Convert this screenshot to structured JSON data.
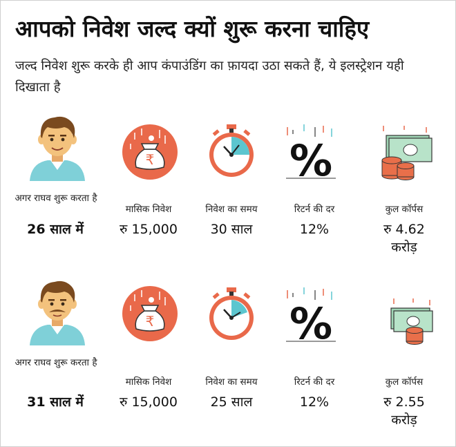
{
  "title": "आपको निवेश जल्द क्यों शुरू करना चाहिए",
  "subtitle": "जल्द निवेश शुरू करके ही आप कंपाउंडिंग का फ़ायदा उठा सकते हैं, ये इलस्ट्रेशन यही दिखाता है",
  "scenarios": [
    {
      "age_label": "अगर राघव शुरू करता है",
      "age_value": "26 साल में",
      "monthly_label": "मासिक निवेश",
      "monthly_value": "रु 15,000",
      "period_label": "निवेश का समय",
      "period_value": "30 साल",
      "rate_label": "रिटर्न की दर",
      "rate_value": "12%",
      "corpus_label": "कुल कॉर्पस",
      "corpus_value_line1": "रु 4.62",
      "corpus_value_line2": "करोड़"
    },
    {
      "age_label": "अगर राघव शुरू करता है",
      "age_value": "31 साल में",
      "monthly_label": "मासिक निवेश",
      "monthly_value": "रु 15,000",
      "period_label": "निवेश का समय",
      "period_value": "25 साल",
      "rate_label": "रिटर्न की दर",
      "rate_value": "12%",
      "corpus_label": "कुल कॉर्पस",
      "corpus_value_line1": "रु 2.55",
      "corpus_value_line2": "करोड़"
    }
  ],
  "icons": {
    "person": "young-man-icon",
    "person_older": "man-with-mustache-icon",
    "money_bag": "rupee-money-bag-icon",
    "stopwatch": "stopwatch-icon",
    "percent": "percent-icon",
    "corpus": "cash-and-coins-icon"
  },
  "colors": {
    "accent_orange": "#e9694a",
    "teal": "#5cc6cf",
    "skin": "#f3c27d",
    "hair": "#7a4a1f",
    "shirt": "#7fd0d8",
    "cash_green": "#9fd5b5",
    "coin_orange": "#e96f4a"
  }
}
